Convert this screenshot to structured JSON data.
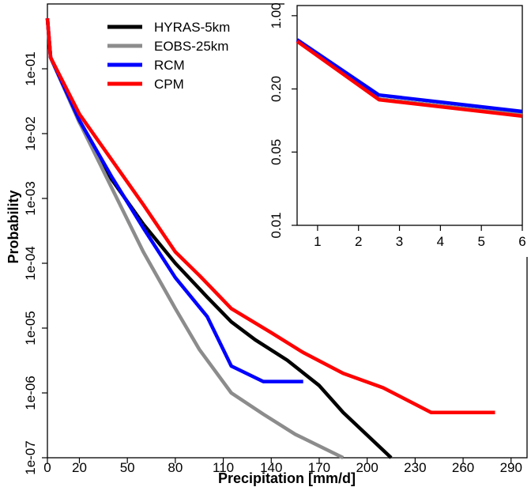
{
  "chart_data": [
    {
      "type": "line",
      "xlabel": "Precipitation [mm/d]",
      "ylabel": "Probability",
      "yscale": "log",
      "xlim": [
        0,
        300
      ],
      "ylim": [
        1e-07,
        1
      ],
      "x_ticks": [
        0,
        20,
        50,
        80,
        110,
        140,
        170,
        200,
        230,
        260,
        290
      ],
      "x_tick_labels": [
        "0",
        "20",
        "50",
        "80",
        "110",
        "140",
        "170",
        "200",
        "230",
        "260",
        "290"
      ],
      "y_ticks": [
        1e-07,
        1e-06,
        1e-05,
        0.0001,
        0.001,
        0.01,
        0.1
      ],
      "y_tick_labels": [
        "1e-07",
        "1e-06",
        "1e-05",
        "1e-04",
        "1e-03",
        "1e-02",
        "1e-01"
      ],
      "legend_position": "top-center",
      "series": [
        {
          "name": "HYRAS-5km",
          "color": "#000000",
          "x": [
            0,
            2,
            20,
            40,
            60,
            80,
            100,
            115,
            130,
            150,
            170,
            185,
            215
          ],
          "y": [
            0.6,
            0.15,
            0.015,
            0.002,
            0.0004,
            0.0001,
            3e-05,
            1.25e-05,
            6.6e-06,
            3.2e-06,
            1.3e-06,
            5e-07,
            1e-07
          ]
        },
        {
          "name": "EOBS-25km",
          "color": "#8c8c8c",
          "x": [
            0,
            2,
            20,
            40,
            60,
            80,
            95,
            115,
            135,
            155,
            185
          ],
          "y": [
            0.6,
            0.15,
            0.015,
            0.0015,
            0.00015,
            2e-05,
            4.7e-06,
            1e-06,
            4.7e-07,
            2.3e-07,
            1e-07
          ]
        },
        {
          "name": "RCM",
          "color": "#0000ff",
          "x": [
            0,
            2,
            20,
            40,
            60,
            80,
            100,
            115,
            135,
            160
          ],
          "y": [
            0.6,
            0.15,
            0.016,
            0.0022,
            0.00035,
            6e-05,
            1.5e-05,
            2.6e-06,
            1.5e-06,
            1.5e-06
          ]
        },
        {
          "name": "CPM",
          "color": "#ff0000",
          "x": [
            0,
            2,
            20,
            40,
            60,
            80,
            95,
            115,
            140,
            160,
            185,
            210,
            240,
            280
          ],
          "y": [
            0.6,
            0.15,
            0.02,
            0.004,
            0.0008,
            0.00015,
            6.5e-05,
            2e-05,
            8.5e-06,
            4.2e-06,
            2e-06,
            1.2e-06,
            5e-07,
            5e-07
          ]
        }
      ]
    },
    {
      "type": "line",
      "yscale": "log",
      "xlim": [
        0.5,
        6
      ],
      "ylim": [
        0.01,
        1.25
      ],
      "x_ticks": [
        1,
        2,
        3,
        4,
        5,
        6
      ],
      "x_tick_labels": [
        "1",
        "2",
        "3",
        "4",
        "5",
        "6"
      ],
      "y_ticks": [
        0.01,
        0.05,
        0.2,
        1.0
      ],
      "y_tick_labels": [
        "0.01",
        "0.05",
        "0.20",
        "1.00"
      ],
      "series": [
        {
          "name": "HYRAS-5km",
          "color": "#000000",
          "x": [
            0.5,
            2.5,
            6
          ],
          "y": [
            0.58,
            0.16,
            0.113
          ]
        },
        {
          "name": "EOBS-25km",
          "color": "#8c8c8c",
          "x": [
            0.5,
            2.5,
            6
          ],
          "y": [
            0.58,
            0.16,
            0.113
          ]
        },
        {
          "name": "RCM",
          "color": "#0000ff",
          "x": [
            0.5,
            2.5,
            6
          ],
          "y": [
            0.59,
            0.175,
            0.122
          ]
        },
        {
          "name": "CPM",
          "color": "#ff0000",
          "x": [
            0.5,
            2.5,
            6
          ],
          "y": [
            0.57,
            0.158,
            0.11
          ]
        }
      ]
    }
  ]
}
